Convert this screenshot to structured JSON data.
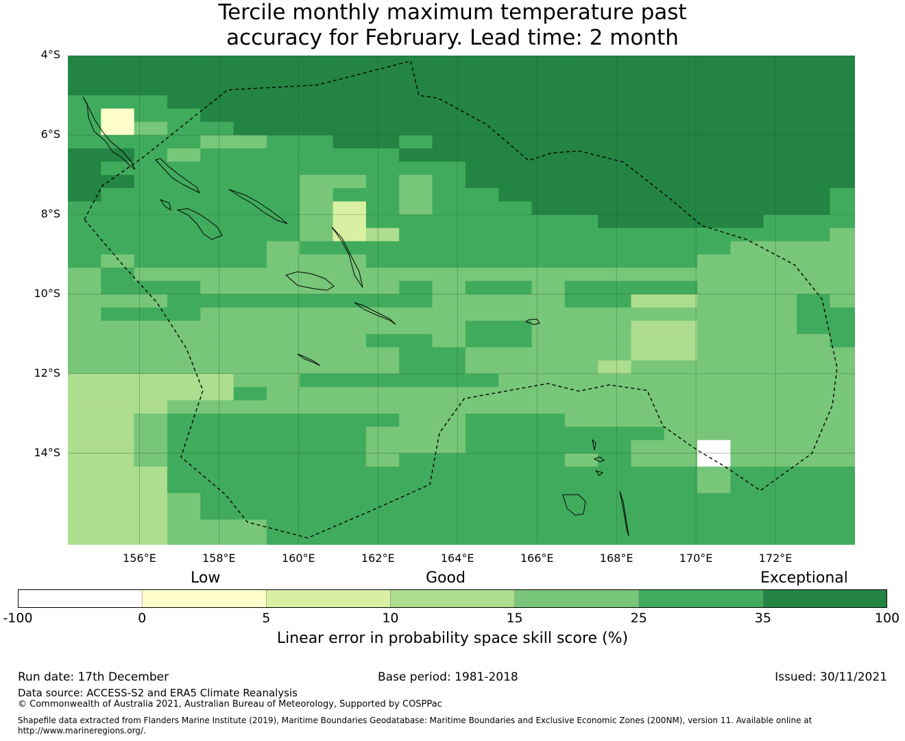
{
  "title": {
    "line1": "Tercile monthly maximum temperature past",
    "line2": "accuracy for February. Lead time: 2 month"
  },
  "map": {
    "lon_range": [
      154.2,
      174.0
    ],
    "lat_range": [
      -16.3,
      -4.0
    ],
    "lat_labels": [
      "4°S",
      "6°S",
      "8°S",
      "10°S",
      "12°S",
      "14°S"
    ],
    "lat_values": [
      -4,
      -6,
      -8,
      -10,
      -12,
      -14
    ],
    "lon_labels": [
      "156°E",
      "158°E",
      "160°E",
      "162°E",
      "164°E",
      "166°E",
      "168°E",
      "170°E",
      "172°E"
    ],
    "lon_values": [
      156,
      158,
      160,
      162,
      164,
      166,
      168,
      170,
      172
    ],
    "grid": {
      "lon_start": 154.2,
      "lat_start": -4.0,
      "cell_deg": 0.8334,
      "legend_levels": "0=<0 white,1=0-5,2=5-10,3=10-15,4=15-25,5=25-35,6=35-100",
      "rows": [
        "666666666666666666666666",
        "666666666666666666666666",
        "666666666666666666666666",
        "555666666666666666666666",
        "515566666666666666666666",
        "514556666666666666666666",
        "555544556656666666666666",
        "665455555566666666666666",
        "655555555555666666666666",
        "665555544545666666666666",
        "655555545545566666666665",
        "555555542545556666666665",
        "555555542555555566666555",
        "555555542355555555555554",
        "555555455555555555554444",
        "545555444555555555544444",
        "454444444444444444444444",
        "455544444454554555544444",
        "444555555554444553344454",
        "455544444444444444444455",
        "444444444444554443344455",
        "444444444554554443344445",
        "444444444455444443344444",
        "444444444455444434444444",
        "333334455555544444444444",
        "333335444444444444444444",
        "333444444444444444444444",
        "334555555544555444444444",
        "334555555444555555444444",
        "334555555444555554404444",
        "334555555455555454404444",
        "333555555555555555545555",
        "333555555555555555545555",
        "333455555555555555555555",
        "333455555555555555555555",
        "333444555555555555555555",
        "333444555555555555555555"
      ]
    }
  },
  "colorbar": {
    "ticks": [
      "-100",
      "0",
      "5",
      "10",
      "15",
      "25",
      "35",
      "100"
    ],
    "colors": [
      "#ffffff",
      "#ffffcc",
      "#d9f0a3",
      "#addd8e",
      "#78c679",
      "#41ab5d",
      "#238443"
    ],
    "categories": [
      "Low",
      "Good",
      "Exceptional"
    ],
    "label": "Linear error in probability space skill score (%)"
  },
  "footer": {
    "run_date": "Run date: 17th December",
    "base_period": "Base period: 1981-2018",
    "issued": "Issued: 30/11/2021",
    "data_source": "Data source: ACCESS-S2 and ERA5 Climate Reanalysis",
    "copyright": "© Commonwealth of Australia 2021, Australian Bureau of Meteorology, Supported by COSPPac",
    "shapefile_line1": "Shapefile data extracted from Flanders Marine Institute (2019), Maritime Boundaries Geodatabase: Maritime Boundaries and Exclusive Economic Zones (200NM), version 11. Available online at",
    "shapefile_line2": "http://www.marineregions.org/."
  }
}
